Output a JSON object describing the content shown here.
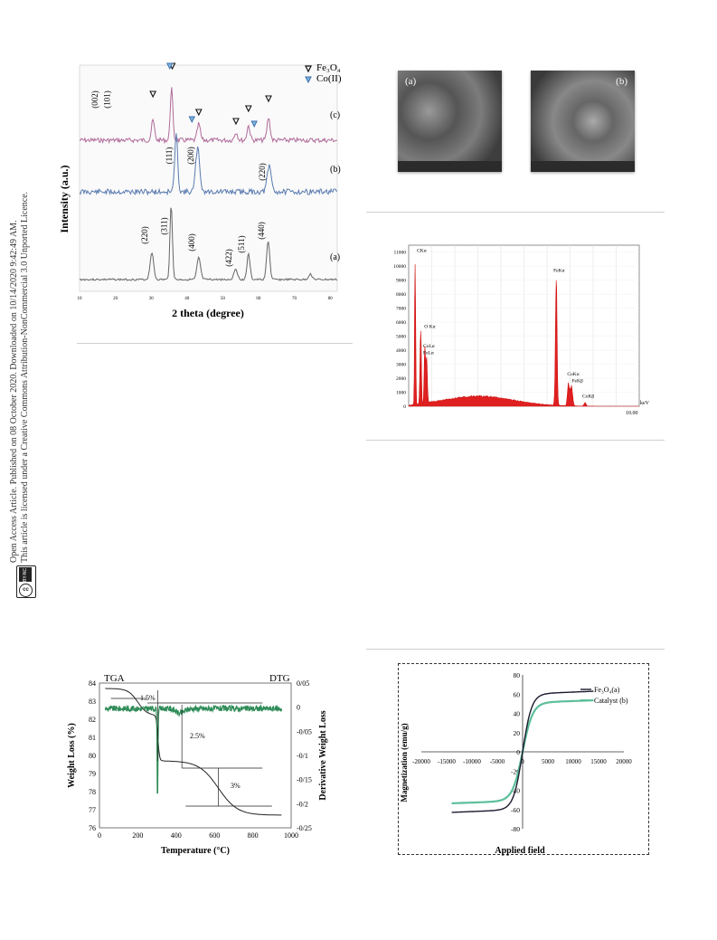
{
  "sidebar": {
    "line1": "Open Access Article. Published on 08 October 2020. Downloaded on 10/14/2020 9:42:49 AM.",
    "line2": "This article is licensed under a Creative Commons Attribution-NonCommercial 3.0 Unported Licence.",
    "cc_badge": "cc",
    "cc_by_nc": "BY-NC"
  },
  "xrd": {
    "legend": [
      "Fe₃O₄",
      "Co(II)"
    ],
    "ylabel": "Intensity (a.u.)",
    "xlabel": "2 theta (degree)",
    "xticks": [
      "10",
      "20",
      "30",
      "40",
      "50",
      "60",
      "70",
      "80"
    ],
    "trace_labels": [
      "(c)",
      "(b)",
      "(a)"
    ],
    "peaks_c": [
      "(002)",
      "(101)"
    ],
    "peaks_b": [
      "(111)",
      "(200)",
      "(220)"
    ],
    "peaks_a": [
      "(220)",
      "(311)",
      "(400)",
      "(422)",
      "(511)",
      "(440)"
    ]
  },
  "sem": {
    "left_label": "(a)",
    "right_label": "(b)"
  },
  "edx": {
    "yticks": [
      "11000",
      "10000",
      "9000",
      "8000",
      "7000",
      "6000",
      "5000",
      "4000",
      "3000",
      "2000",
      "1000",
      "0"
    ],
    "xunit": "keV",
    "xmax": "10.00",
    "peak_labels": [
      "CKα",
      "O Kα",
      "CoLα",
      "FeLα",
      "FeKα",
      "CoKα",
      "FeKβ",
      "CoKβ"
    ]
  },
  "tga": {
    "left_title": "TGA",
    "right_title": "DTG",
    "ylabel": "Weight Loss (%)",
    "y2label": "Derivative Weight Loss",
    "xlabel": "Temperature (°C)",
    "yticks": [
      "84",
      "83",
      "82",
      "81",
      "80",
      "79",
      "78",
      "77",
      "76"
    ],
    "y2ticks": [
      "0/05",
      "0",
      "-0/05",
      "-0/1",
      "-0/15",
      "-0/2",
      "-0/25"
    ],
    "xticks": [
      "0",
      "200",
      "400",
      "600",
      "800",
      "1000"
    ],
    "annotations": [
      "1.5%",
      "2.5%",
      "3%"
    ]
  },
  "vsm": {
    "ylabel": "Magnetization (emu/g)",
    "xlabel": "Applied field",
    "yticks": [
      "80",
      "60",
      "40",
      "20",
      "0",
      "-20",
      "-40",
      "-60",
      "-80"
    ],
    "xticks": [
      "-20000",
      "-15000",
      "-10000",
      "-5000",
      "0",
      "5000",
      "10000",
      "15000",
      "20000"
    ],
    "legend": [
      "Fe₃O₄(a)",
      "Catalyst (b)"
    ],
    "colors": {
      "fe3o4": "#1a1a2e",
      "catalyst": "#5cbf9a"
    }
  },
  "colors": {
    "xrd_c": "#b06a9a",
    "xrd_b": "#5a7bb0",
    "xrd_a": "#666666",
    "edx": "#e02020",
    "dtg": "#2e8b57",
    "tga": "#222222"
  }
}
